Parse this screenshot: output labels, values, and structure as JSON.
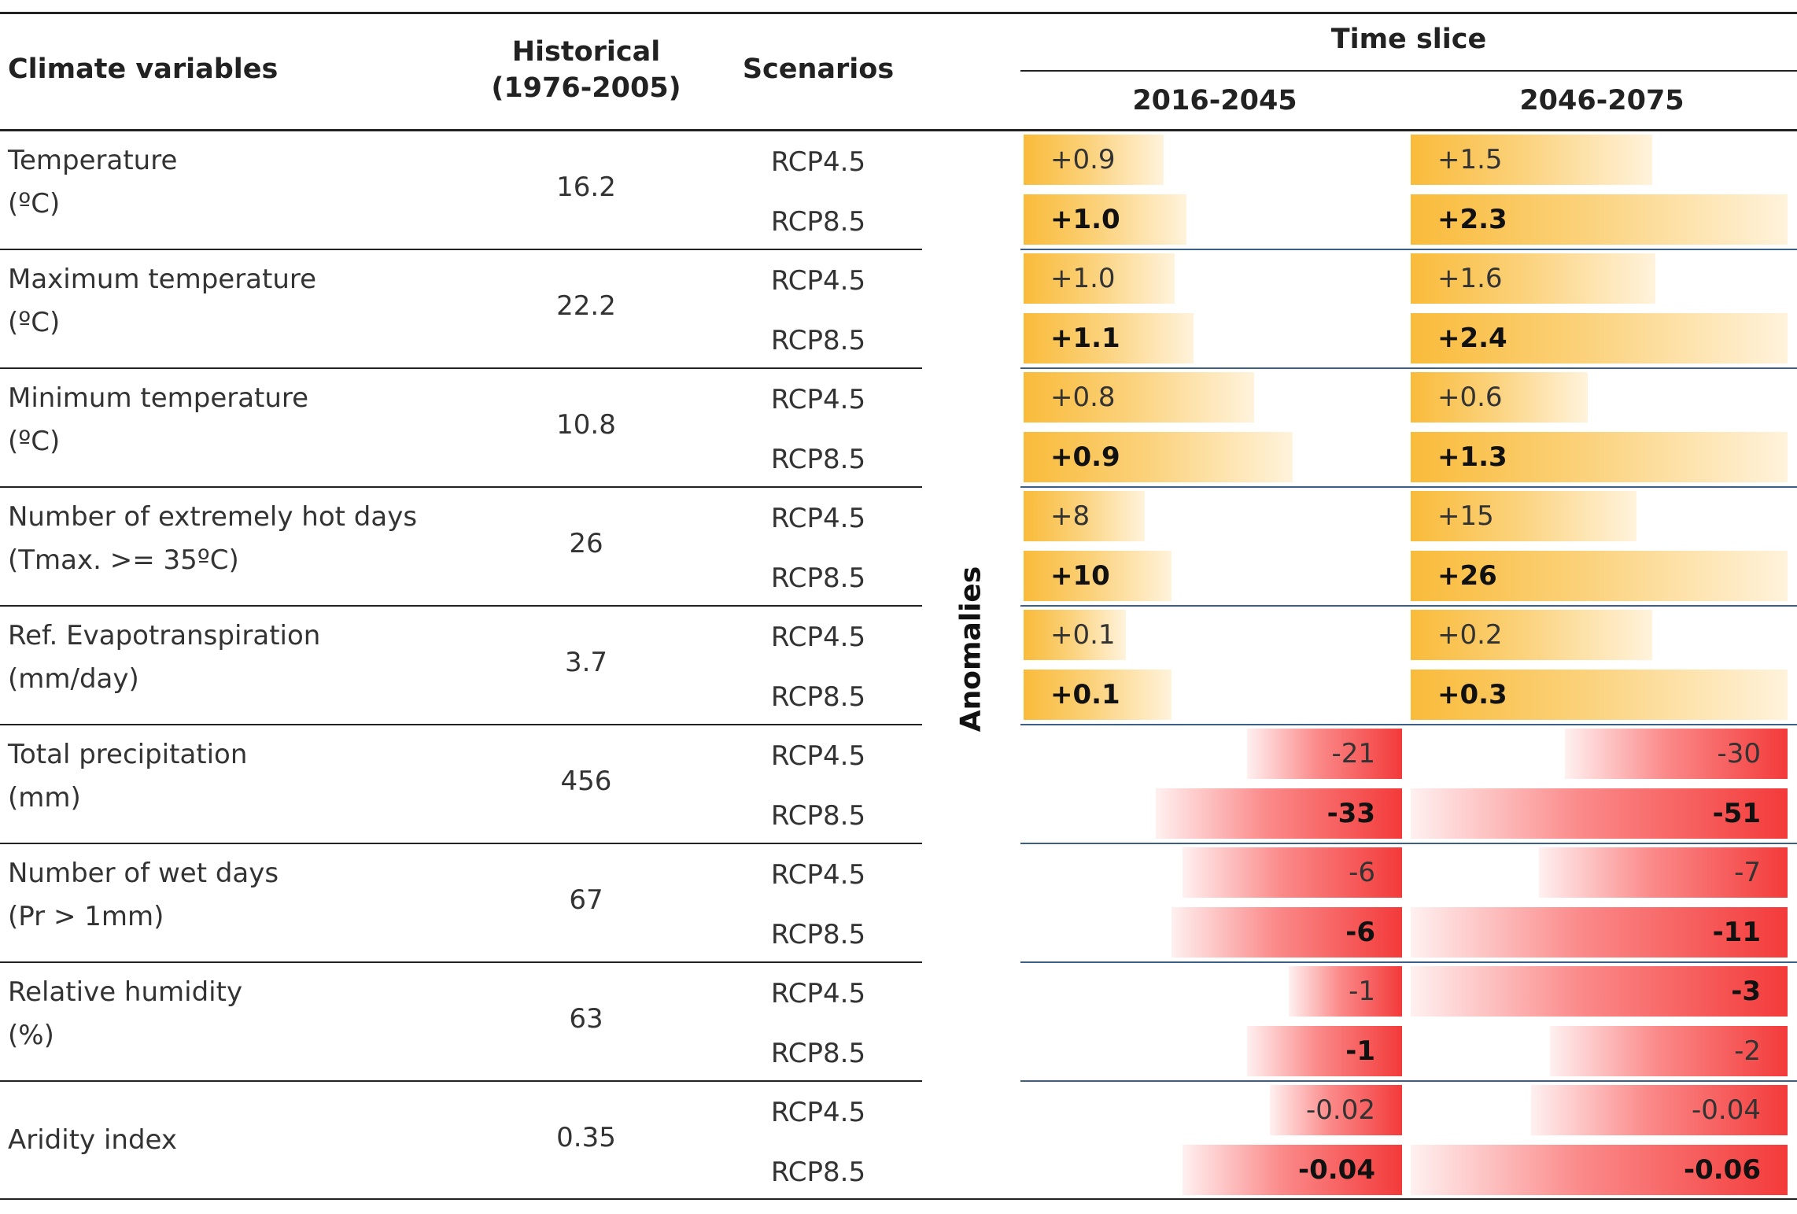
{
  "headers": {
    "climate_variables": "Climate variables",
    "historical_line1": "Historical",
    "historical_line2": "(1976-2005)",
    "scenarios": "Scenarios",
    "time_slice": "Time slice",
    "period_1": "2016-2045",
    "period_2": "2046-2075",
    "anomalies": "Anomalies"
  },
  "colors": {
    "positive_bar": "#f9bb3a",
    "negative_bar": "#f33a3a",
    "divider_blue": "#3b5f86"
  },
  "rows": [
    {
      "name": "Temperature",
      "unit": "(ºC)",
      "historical": "16.2",
      "scenarios": [
        "RCP4.5",
        "RCP8.5"
      ],
      "p1": [
        {
          "text": "+0.9",
          "len": 0.37
        },
        {
          "text": "+1.0",
          "len": 0.43
        }
      ],
      "p2": [
        {
          "text": "+1.5",
          "len": 0.64
        },
        {
          "text": "+2.3",
          "len": 1.0
        }
      ]
    },
    {
      "name": "Maximum temperature",
      "unit": "(ºC)",
      "historical": "22.2",
      "scenarios": [
        "RCP4.5",
        "RCP8.5"
      ],
      "p1": [
        {
          "text": "+1.0",
          "len": 0.4
        },
        {
          "text": "+1.1",
          "len": 0.45
        }
      ],
      "p2": [
        {
          "text": "+1.6",
          "len": 0.65
        },
        {
          "text": "+2.4",
          "len": 1.0
        }
      ]
    },
    {
      "name": "Minimum temperature",
      "unit": "(ºC)",
      "historical": "10.8",
      "scenarios": [
        "RCP4.5",
        "RCP8.5"
      ],
      "p1": [
        {
          "text": "+0.8",
          "len": 0.61
        },
        {
          "text": "+0.9",
          "len": 0.71
        }
      ],
      "p2": [
        {
          "text": "+0.6",
          "len": 0.47
        },
        {
          "text": "+1.3",
          "len": 1.0
        }
      ]
    },
    {
      "name": "Number of extremely hot days",
      "unit": "(Tmax. >= 35ºC)",
      "historical": "26",
      "scenarios": [
        "RCP4.5",
        "RCP8.5"
      ],
      "p1": [
        {
          "text": "+8",
          "len": 0.32
        },
        {
          "text": "+10",
          "len": 0.39
        }
      ],
      "p2": [
        {
          "text": "+15",
          "len": 0.6
        },
        {
          "text": "+26",
          "len": 1.0
        }
      ]
    },
    {
      "name": "Ref. Evapotranspiration",
      "unit": "(mm/day)",
      "historical": "3.7",
      "scenarios": [
        "RCP4.5",
        "RCP8.5"
      ],
      "p1": [
        {
          "text": "+0.1",
          "len": 0.27
        },
        {
          "text": "+0.1",
          "len": 0.39
        }
      ],
      "p2": [
        {
          "text": "+0.2",
          "len": 0.64
        },
        {
          "text": "+0.3",
          "len": 1.0
        }
      ]
    },
    {
      "name": "Total precipitation",
      "unit": "(mm)",
      "historical": "456",
      "scenarios": [
        "RCP4.5",
        "RCP8.5"
      ],
      "p1": [
        {
          "text": "-21",
          "len": 0.41
        },
        {
          "text": "-33",
          "len": 0.65
        }
      ],
      "p2": [
        {
          "text": "-30",
          "len": 0.59
        },
        {
          "text": "-51",
          "len": 1.0
        }
      ]
    },
    {
      "name": "Number of wet days",
      "unit": "(Pr > 1mm)",
      "historical": "67",
      "scenarios": [
        "RCP4.5",
        "RCP8.5"
      ],
      "p1": [
        {
          "text": "-6",
          "len": 0.58
        },
        {
          "text": "-6",
          "len": 0.61
        }
      ],
      "p2": [
        {
          "text": "-7",
          "len": 0.66
        },
        {
          "text": "-11",
          "len": 1.0
        }
      ]
    },
    {
      "name": "Relative humidity",
      "unit": "(%)",
      "historical": "63",
      "scenarios": [
        "RCP4.5",
        "RCP8.5"
      ],
      "p1": [
        {
          "text": "-1",
          "len": 0.3
        },
        {
          "text": "-1",
          "len": 0.41
        }
      ],
      "p2": [
        {
          "text": "-3",
          "len": 1.0
        },
        {
          "text": "-2",
          "len": 0.63
        }
      ]
    },
    {
      "name": "Aridity index",
      "unit": "",
      "historical": "0.35",
      "scenarios": [
        "RCP4.5",
        "RCP8.5"
      ],
      "p1": [
        {
          "text": "-0.02",
          "len": 0.35
        },
        {
          "text": "-0.04",
          "len": 0.58
        }
      ],
      "p2": [
        {
          "text": "-0.04",
          "len": 0.68
        },
        {
          "text": "-0.06",
          "len": 1.0
        }
      ]
    }
  ]
}
